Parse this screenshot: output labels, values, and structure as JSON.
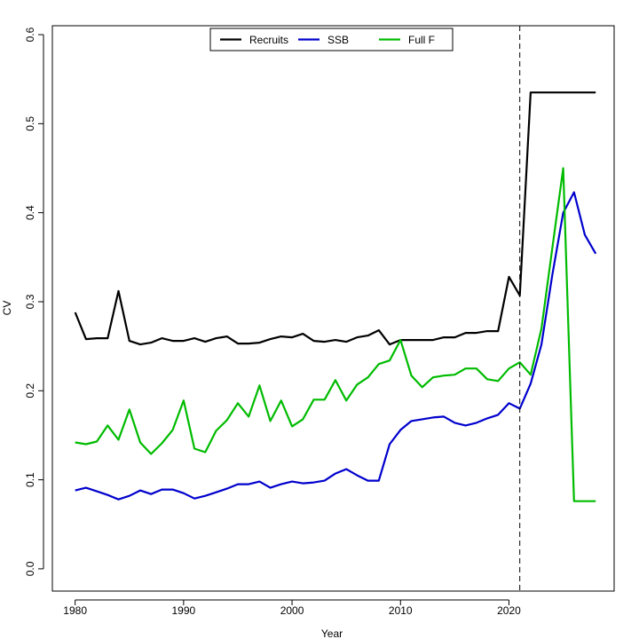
{
  "chart_data": {
    "type": "line",
    "xlabel": "Year",
    "ylabel": "CV",
    "xlim": [
      1977.9,
      2029.7
    ],
    "ylim": [
      -0.025,
      0.61
    ],
    "x_ticks": [
      1980,
      1990,
      2000,
      2010,
      2020
    ],
    "y_ticks": [
      0.0,
      0.1,
      0.2,
      0.3,
      0.4,
      0.5,
      0.6
    ],
    "x_tick_labels": [
      "1980",
      "1990",
      "2000",
      "2010",
      "2020"
    ],
    "y_tick_labels": [
      "0.0",
      "0.1",
      "0.2",
      "0.3",
      "0.4",
      "0.5",
      "0.6"
    ],
    "vline": 2021,
    "legend_position": "top-center",
    "grid": false,
    "series": [
      {
        "name": "Recruits",
        "color": "#000000",
        "x": [
          1980,
          1981,
          1982,
          1983,
          1984,
          1985,
          1986,
          1987,
          1988,
          1989,
          1990,
          1991,
          1992,
          1993,
          1994,
          1995,
          1996,
          1997,
          1998,
          1999,
          2000,
          2001,
          2002,
          2003,
          2004,
          2005,
          2006,
          2007,
          2008,
          2009,
          2010,
          2011,
          2012,
          2013,
          2014,
          2015,
          2016,
          2017,
          2018,
          2019,
          2020,
          2021,
          2022,
          2023,
          2024,
          2025,
          2026,
          2027,
          2028
        ],
        "values": [
          0.288,
          0.258,
          0.259,
          0.259,
          0.312,
          0.256,
          0.252,
          0.254,
          0.259,
          0.256,
          0.256,
          0.259,
          0.255,
          0.259,
          0.261,
          0.253,
          0.253,
          0.254,
          0.258,
          0.261,
          0.26,
          0.264,
          0.256,
          0.255,
          0.257,
          0.255,
          0.26,
          0.262,
          0.268,
          0.252,
          0.257,
          0.257,
          0.257,
          0.257,
          0.26,
          0.26,
          0.265,
          0.265,
          0.267,
          0.267,
          0.328,
          0.307,
          0.535,
          0.535,
          0.535,
          0.535,
          0.535,
          0.535,
          0.535
        ]
      },
      {
        "name": "SSB",
        "color": "#0000cd",
        "x": [
          1980,
          1981,
          1982,
          1983,
          1984,
          1985,
          1986,
          1987,
          1988,
          1989,
          1990,
          1991,
          1992,
          1993,
          1994,
          1995,
          1996,
          1997,
          1998,
          1999,
          2000,
          2001,
          2002,
          2003,
          2004,
          2005,
          2006,
          2007,
          2008,
          2009,
          2010,
          2011,
          2012,
          2013,
          2014,
          2015,
          2016,
          2017,
          2018,
          2019,
          2020,
          2021,
          2022,
          2023,
          2024,
          2025,
          2026,
          2027,
          2028
        ],
        "values": [
          0.088,
          0.091,
          0.087,
          0.083,
          0.078,
          0.082,
          0.088,
          0.084,
          0.089,
          0.089,
          0.085,
          0.079,
          0.082,
          0.086,
          0.09,
          0.095,
          0.095,
          0.098,
          0.091,
          0.095,
          0.098,
          0.096,
          0.097,
          0.099,
          0.107,
          0.112,
          0.105,
          0.099,
          0.099,
          0.14,
          0.156,
          0.166,
          0.168,
          0.17,
          0.171,
          0.164,
          0.161,
          0.164,
          0.169,
          0.173,
          0.186,
          0.18,
          0.208,
          0.252,
          0.33,
          0.4,
          0.423,
          0.375,
          0.354
        ]
      },
      {
        "name": "Full F",
        "color": "#00bb00",
        "x": [
          1980,
          1981,
          1982,
          1983,
          1984,
          1985,
          1986,
          1987,
          1988,
          1989,
          1990,
          1991,
          1992,
          1993,
          1994,
          1995,
          1996,
          1997,
          1998,
          1999,
          2000,
          2001,
          2002,
          2003,
          2004,
          2005,
          2006,
          2007,
          2008,
          2009,
          2010,
          2011,
          2012,
          2013,
          2014,
          2015,
          2016,
          2017,
          2018,
          2019,
          2020,
          2021,
          2022,
          2023,
          2024,
          2025,
          2026,
          2027,
          2028
        ],
        "values": [
          0.142,
          0.14,
          0.143,
          0.161,
          0.145,
          0.179,
          0.142,
          0.129,
          0.141,
          0.156,
          0.189,
          0.135,
          0.131,
          0.155,
          0.167,
          0.186,
          0.171,
          0.206,
          0.166,
          0.189,
          0.16,
          0.168,
          0.19,
          0.19,
          0.212,
          0.189,
          0.207,
          0.215,
          0.23,
          0.234,
          0.257,
          0.217,
          0.204,
          0.215,
          0.217,
          0.218,
          0.225,
          0.225,
          0.213,
          0.211,
          0.225,
          0.232,
          0.218,
          0.27,
          0.36,
          0.45,
          0.076,
          0.076,
          0.076
        ]
      }
    ]
  }
}
